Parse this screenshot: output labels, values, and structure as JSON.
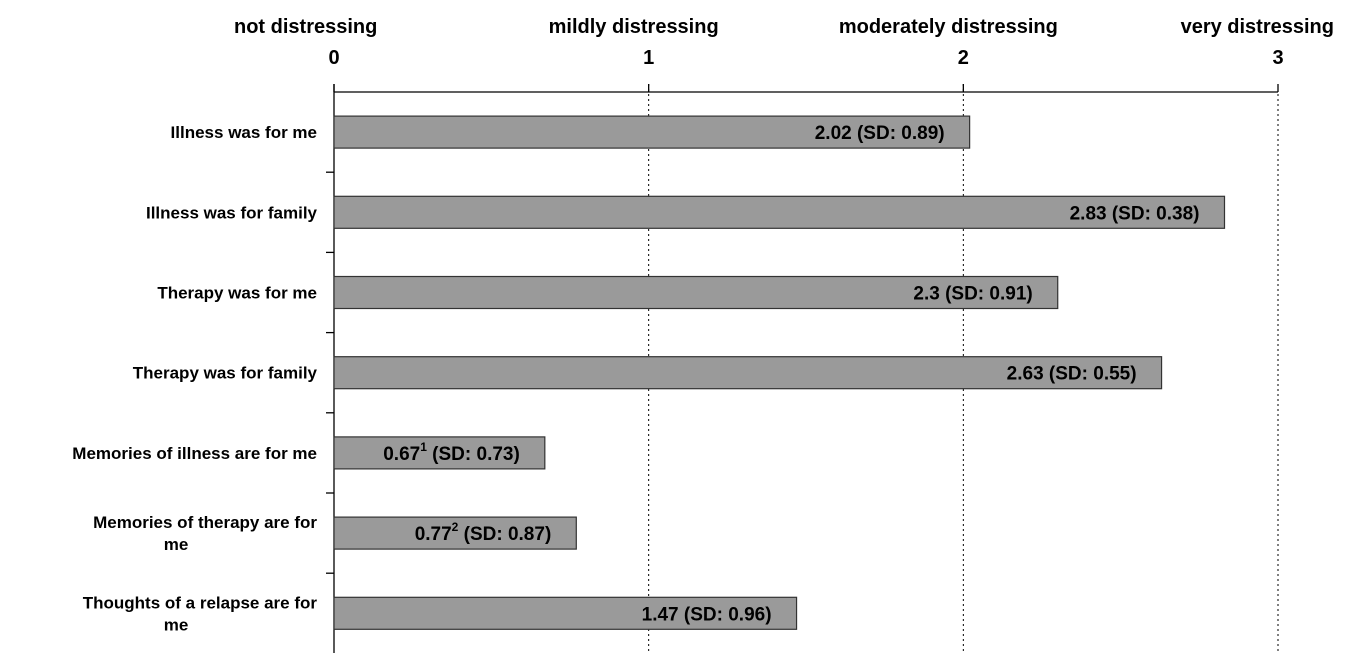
{
  "chart_data": {
    "type": "bar",
    "orientation": "horizontal",
    "xlim": [
      0,
      3
    ],
    "grid": true,
    "ticks": [
      {
        "value": 0,
        "label": "not distressing",
        "number": "0"
      },
      {
        "value": 1,
        "label": "mildly distressing",
        "number": "1"
      },
      {
        "value": 2,
        "label": "moderately distressing",
        "number": "2"
      },
      {
        "value": 3,
        "label": "very distressing",
        "number": "3"
      }
    ],
    "categories": [
      [
        "Illness was for me"
      ],
      [
        "Illness was for family"
      ],
      [
        "Therapy was for me"
      ],
      [
        "Therapy was for family"
      ],
      [
        "Memories of illness are for me"
      ],
      [
        "Memories of therapy are for",
        "me"
      ],
      [
        "Thoughts of a relapse are for",
        "me"
      ]
    ],
    "values": [
      2.02,
      2.83,
      2.3,
      2.63,
      0.67,
      0.77,
      1.47
    ],
    "labels": [
      {
        "value": "2.02",
        "sup": "",
        "sd": "  (SD: 0.89)"
      },
      {
        "value": "2.83",
        "sup": "",
        "sd": " (SD: 0.38)"
      },
      {
        "value": "2.3",
        "sup": "",
        "sd": " (SD: 0.91)"
      },
      {
        "value": "2.63",
        "sup": "",
        "sd": " (SD: 0.55)"
      },
      {
        "value": "0.67",
        "sup": "1",
        "sd": " (SD: 0.73)"
      },
      {
        "value": "0.77",
        "sup": "2",
        "sd": " (SD: 0.87)"
      },
      {
        "value": "1.47",
        "sup": "",
        "sd": " (SD: 0.96)"
      }
    ]
  }
}
